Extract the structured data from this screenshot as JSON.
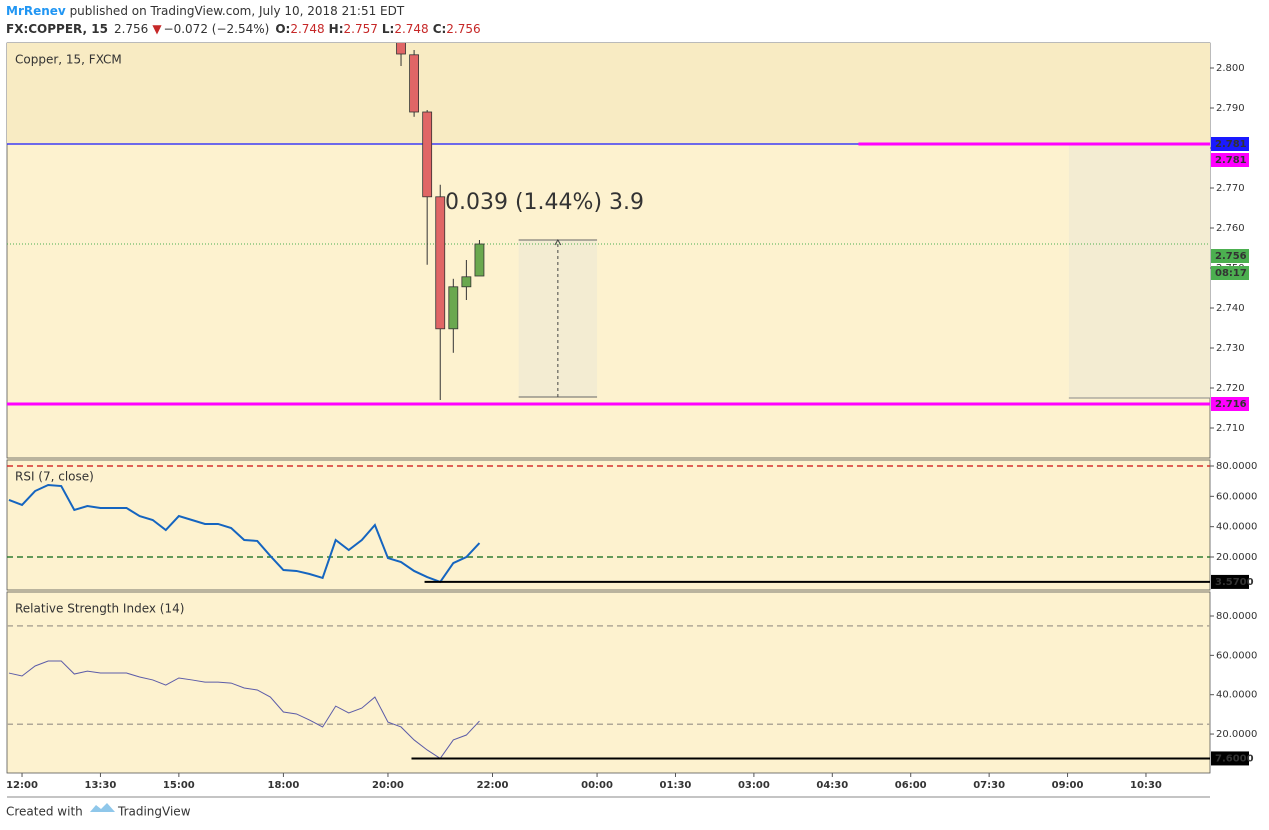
{
  "header": {
    "author": "MrRenev",
    "published": " published on TradingView.com, July 10, 2018 21:51 EDT"
  },
  "symbol": {
    "name": "FX:COPPER, 15",
    "price": "2.756",
    "arrow": "▼",
    "change": "−0.072 (−2.54%)",
    "ohlc": [
      {
        "key": "O:",
        "value": "2.748"
      },
      {
        "key": "H:",
        "value": "2.757"
      },
      {
        "key": "L:",
        "value": "2.748"
      },
      {
        "key": "C:",
        "value": "2.756"
      }
    ]
  },
  "chart_data": [
    {
      "type": "candlestick",
      "title": "Copper, 15, FXCM",
      "x": [
        29,
        30,
        31,
        32,
        33,
        34,
        35
      ],
      "open": [
        2.81,
        2.8033,
        2.789,
        2.7678,
        2.7348,
        2.7453,
        2.748
      ],
      "high": [
        2.812,
        2.8045,
        2.7895,
        2.7708,
        2.7473,
        2.752,
        2.757
      ],
      "low": [
        2.8005,
        2.7878,
        2.7508,
        2.717,
        2.7288,
        2.742,
        2.748
      ],
      "close": [
        2.8035,
        2.789,
        2.7678,
        2.7348,
        2.7453,
        2.7478,
        2.756
      ],
      "up_color": "#6aa84f",
      "down_color": "#e06666",
      "xlim": [
        -1.15,
        90.9
      ],
      "ylim": [
        2.7025,
        2.80625
      ],
      "yticks": [
        {
          "value": 2.71,
          "label": "2.710"
        },
        {
          "value": 2.72,
          "label": "2.720"
        },
        {
          "value": 2.73,
          "label": "2.730"
        },
        {
          "value": 2.74,
          "label": "2.740"
        },
        {
          "value": 2.75,
          "label": "2.750"
        },
        {
          "value": 2.76,
          "label": "2.760"
        },
        {
          "value": 2.77,
          "label": "2.770"
        },
        {
          "value": 2.78,
          "label": "2.780"
        },
        {
          "value": 2.79,
          "label": "2.790"
        },
        {
          "value": 2.8,
          "label": "2.800"
        }
      ],
      "lines": [
        {
          "value": 2.781,
          "color": "#1a1aff",
          "x_start": -1.15
        },
        {
          "value": 2.781,
          "color": "#ff00ff",
          "x_start": 64
        },
        {
          "value": 2.716,
          "color": "#ff00ff",
          "x_start": -1.15
        }
      ],
      "last": {
        "value": 2.756,
        "countdown": "08:17",
        "color": "#4caf50"
      },
      "zone": {
        "x": [
          80.1,
          90.9
        ],
        "y": [
          2.7175,
          2.78075
        ]
      },
      "measure": {
        "label": "0.039 (1.44%) 3.9",
        "x": [
          38,
          44
        ],
        "y": [
          2.71775,
          2.757
        ]
      }
    },
    {
      "type": "line",
      "title": "RSI (7, close)",
      "x": [
        -1,
        0,
        1,
        2,
        3,
        4,
        5,
        6,
        7,
        8,
        9,
        10,
        11,
        12,
        13,
        14,
        15,
        16,
        17,
        18,
        19,
        20,
        21,
        22,
        23,
        24,
        25,
        26,
        27,
        28,
        29,
        30,
        31,
        32,
        33,
        34,
        35
      ],
      "values": [
        57.6,
        54.3,
        63.5,
        67.5,
        66.8,
        51.0,
        53.6,
        52.3,
        52.3,
        52.3,
        47.0,
        44.4,
        37.8,
        47.0,
        44.4,
        41.8,
        41.8,
        39.1,
        31.2,
        30.6,
        20.7,
        11.4,
        10.8,
        8.8,
        6.2,
        31.2,
        24.6,
        31.2,
        41.1,
        19.3,
        16.7,
        10.8,
        6.8,
        3.57,
        16.0,
        20.0,
        29.2
      ],
      "color": "#1565c0",
      "xlim": [
        -1.15,
        90.9
      ],
      "ylim": [
        -1.76,
        83.96
      ],
      "yticks": [
        {
          "value": 20,
          "label": "20.0000"
        },
        {
          "value": 40,
          "label": "40.0000"
        },
        {
          "value": 60,
          "label": "60.0000"
        },
        {
          "value": 80,
          "label": "80.0000"
        }
      ],
      "levels": [
        {
          "value": 80,
          "color": "#d32f2f"
        },
        {
          "value": 20,
          "color": "#2e7d32"
        }
      ],
      "marker": {
        "value": 3.57,
        "value_label": "3.5700",
        "x_start": 30.8
      }
    },
    {
      "type": "line",
      "title": "Relative Strength Index (14)",
      "x": [
        -1,
        0,
        1,
        2,
        3,
        4,
        5,
        6,
        7,
        8,
        9,
        10,
        11,
        12,
        13,
        14,
        15,
        16,
        17,
        18,
        19,
        20,
        21,
        22,
        23,
        24,
        25,
        26,
        27,
        28,
        29,
        30,
        31,
        32,
        33,
        34,
        35
      ],
      "values": [
        51.0,
        49.5,
        54.6,
        57.1,
        57.1,
        50.5,
        52.0,
        51.0,
        51.0,
        51.0,
        49.0,
        47.5,
        44.9,
        48.5,
        47.5,
        46.4,
        46.4,
        45.9,
        43.4,
        42.4,
        38.8,
        31.2,
        30.2,
        27.1,
        23.6,
        34.2,
        30.7,
        33.2,
        38.8,
        26.1,
        23.6,
        17.0,
        11.9,
        7.6,
        17.0,
        19.5,
        26.6
      ],
      "color": "#5c5ca8",
      "xlim": [
        -1.15,
        90.9
      ],
      "ylim": [
        0.2,
        92.2
      ],
      "yticks": [
        {
          "value": 20,
          "label": "20.0000"
        },
        {
          "value": 40,
          "label": "40.0000"
        },
        {
          "value": 60,
          "label": "60.0000"
        },
        {
          "value": 80,
          "label": "80.0000"
        }
      ],
      "levels": [
        {
          "value": 75,
          "color": "#b0a898"
        },
        {
          "value": 25,
          "color": "#b0a898"
        }
      ],
      "marker": {
        "value": 7.6,
        "value_label": "7.6000",
        "x_start": 29.8
      },
      "xticks": [
        {
          "value": 0,
          "label": "12:00"
        },
        {
          "value": 6,
          "label": "13:30"
        },
        {
          "value": 12,
          "label": "15:00"
        },
        {
          "value": 20,
          "label": "18:00"
        },
        {
          "value": 28,
          "label": "20:00"
        },
        {
          "value": 36,
          "label": "22:00"
        },
        {
          "value": 44,
          "label": "00:00"
        },
        {
          "value": 50,
          "label": "01:30"
        },
        {
          "value": 56,
          "label": "03:00"
        },
        {
          "value": 62,
          "label": "04:30"
        },
        {
          "value": 68,
          "label": "06:00"
        },
        {
          "value": 74,
          "label": "07:30"
        },
        {
          "value": 80,
          "label": "09:00"
        },
        {
          "value": 86,
          "label": "10:30"
        }
      ]
    }
  ],
  "footer": {
    "created": "Created with",
    "brand": "TradingView"
  }
}
